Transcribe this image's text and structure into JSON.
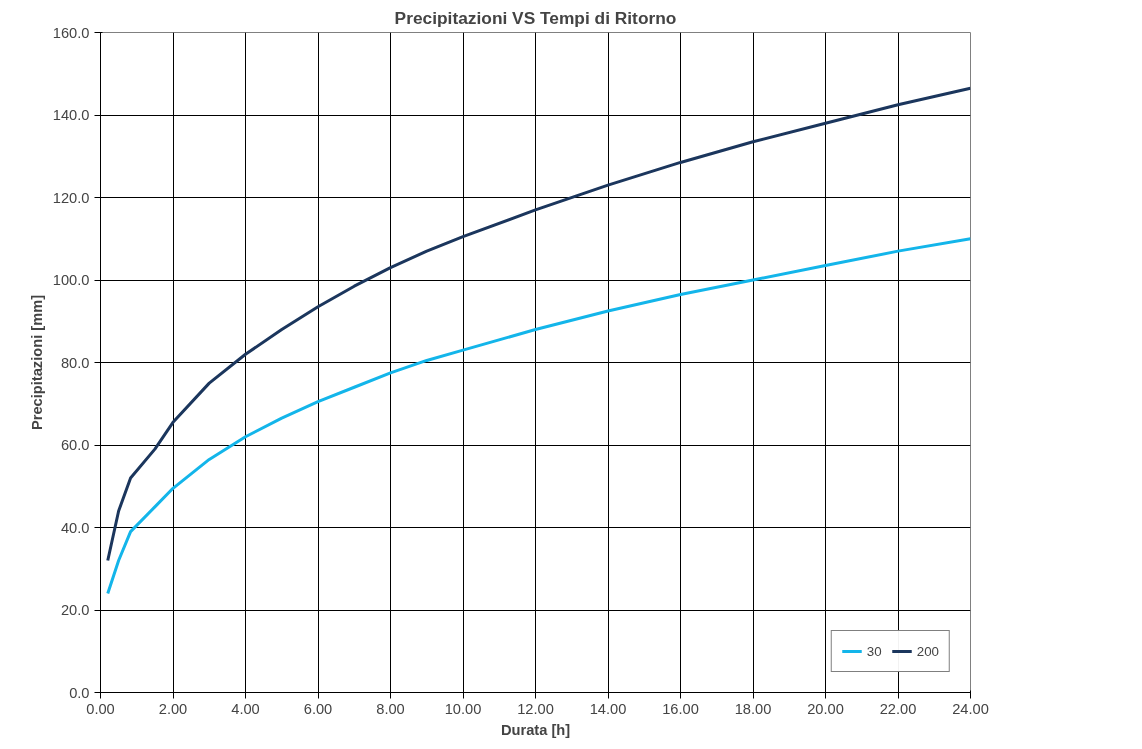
{
  "chart_data": {
    "type": "line",
    "title": "Precipitazioni VS Tempi di Ritorno",
    "xlabel": "Durata [h]",
    "ylabel": "Precipitazioni [mm]",
    "x": [
      0.2,
      0.5,
      0.83,
      1.5,
      2,
      3,
      4,
      5,
      6,
      7,
      8,
      9,
      10,
      12,
      14,
      16,
      18,
      20,
      22,
      24
    ],
    "series": [
      {
        "name": "30",
        "color": "#13b5ea",
        "values": [
          24,
          32,
          39,
          45,
          49.5,
          56.5,
          62,
          66.5,
          70.5,
          74,
          77.5,
          80.5,
          83,
          88,
          92.5,
          96.5,
          100,
          103.5,
          107,
          110
        ]
      },
      {
        "name": "200",
        "color": "#1b365d",
        "values": [
          32,
          44,
          52,
          59,
          65.5,
          75,
          82,
          88,
          93.5,
          98.5,
          103,
          107,
          110.5,
          117,
          123,
          128.5,
          133.5,
          138,
          142.5,
          146.5
        ]
      }
    ],
    "xlim": [
      0,
      24
    ],
    "ylim": [
      0,
      160
    ],
    "xticks": [
      {
        "value": 0,
        "label": "0.00"
      },
      {
        "value": 2,
        "label": "2.00"
      },
      {
        "value": 4,
        "label": "4.00"
      },
      {
        "value": 6,
        "label": "6.00"
      },
      {
        "value": 8,
        "label": "8.00"
      },
      {
        "value": 10,
        "label": "10.00"
      },
      {
        "value": 12,
        "label": "12.00"
      },
      {
        "value": 14,
        "label": "14.00"
      },
      {
        "value": 16,
        "label": "16.00"
      },
      {
        "value": 18,
        "label": "18.00"
      },
      {
        "value": 20,
        "label": "20.00"
      },
      {
        "value": 22,
        "label": "22.00"
      },
      {
        "value": 24,
        "label": "24.00"
      }
    ],
    "yticks": [
      {
        "value": 0,
        "label": "0.0"
      },
      {
        "value": 20,
        "label": "20.0"
      },
      {
        "value": 40,
        "label": "40.0"
      },
      {
        "value": 60,
        "label": "60.0"
      },
      {
        "value": 80,
        "label": "80.0"
      },
      {
        "value": 100,
        "label": "100.0"
      },
      {
        "value": 120,
        "label": "120.0"
      },
      {
        "value": 140,
        "label": "140.0"
      },
      {
        "value": 160,
        "label": "160.0"
      }
    ],
    "grid": true,
    "legend": "bottom right",
    "marker": "none",
    "line_style": "solid"
  }
}
